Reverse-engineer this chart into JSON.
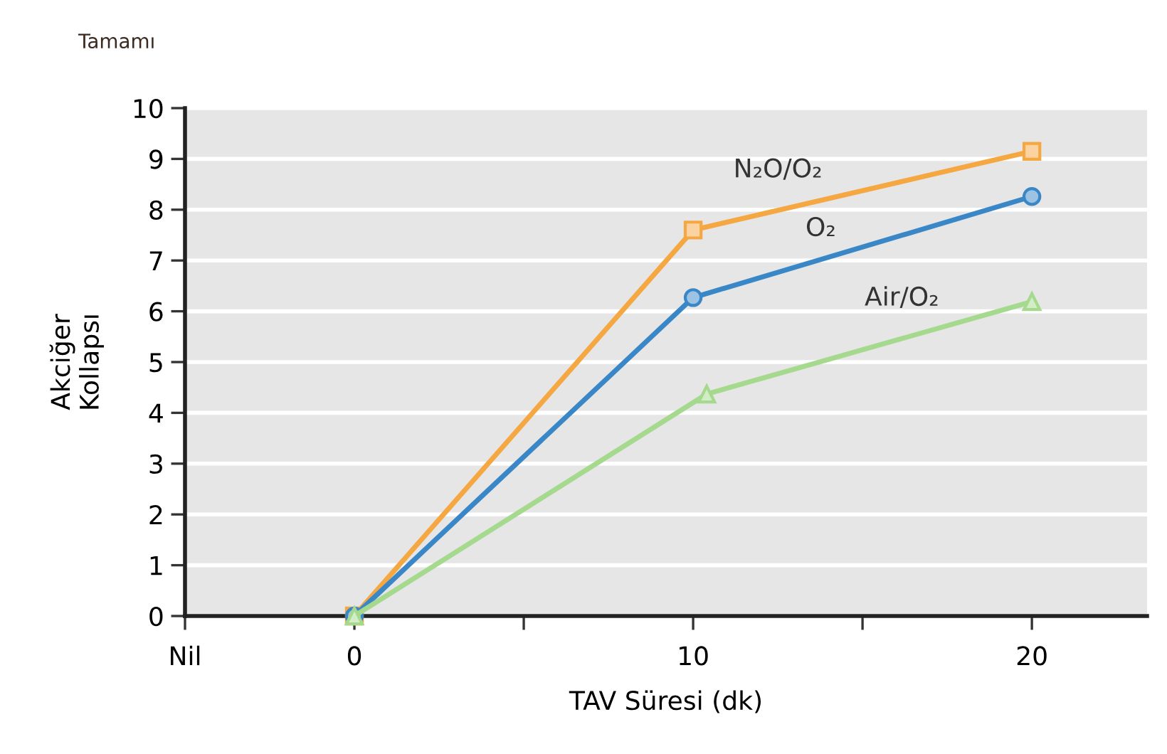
{
  "chart_data": {
    "type": "line",
    "xlabel": "TAV Süresi (dk)",
    "ylabel": "Akciğer\nKollapsı",
    "annotations": [
      "Tamamı"
    ],
    "xlim": [
      -5,
      23.4
    ],
    "xticks": [
      {
        "value": -5,
        "label": "Nil"
      },
      0,
      {
        "value": 5,
        "label": null
      },
      10,
      {
        "value": 15,
        "label": null
      },
      20
    ],
    "ylim": [
      0,
      10
    ],
    "yticks": [
      0,
      1,
      2,
      3,
      4,
      5,
      6,
      7,
      8,
      9,
      10
    ],
    "grid": "y",
    "legend": false,
    "series": [
      {
        "name": "N₂O/O₂",
        "color": "#f5a742",
        "marker": "square",
        "x": [
          0,
          10,
          20
        ],
        "values": [
          0,
          7.6,
          9.15
        ]
      },
      {
        "name": "O₂",
        "color": "#3a87c8",
        "marker": "circle",
        "x": [
          0,
          10,
          20
        ],
        "values": [
          0,
          6.27,
          8.26
        ]
      },
      {
        "name": "Air/O₂",
        "color": "#a5d98e",
        "marker": "triangle",
        "x": [
          0,
          10.4,
          20
        ],
        "values": [
          0,
          4.37,
          6.19
        ]
      }
    ]
  }
}
